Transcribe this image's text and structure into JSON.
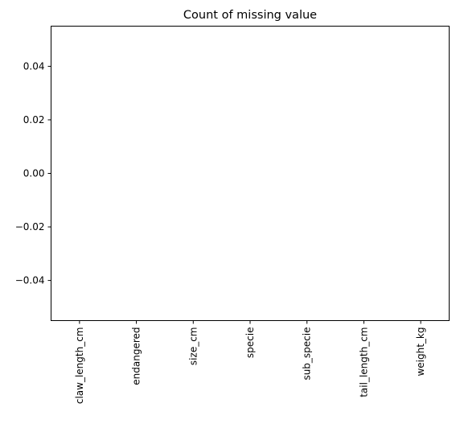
{
  "chart_data": {
    "type": "bar",
    "title": "Count of missing value",
    "xlabel": "",
    "ylabel": "",
    "categories": [
      "claw_length_cm",
      "endangered",
      "size_cm",
      "specie",
      "sub_specie",
      "tail_length_cm",
      "weight_kg"
    ],
    "values": [
      0,
      0,
      0,
      0,
      0,
      0,
      0
    ],
    "ylim": [
      -0.055,
      0.055
    ],
    "yticks": [
      0.04,
      0.02,
      0.0,
      -0.02,
      -0.04
    ],
    "ytick_labels": [
      "0.04",
      "0.02",
      "0.00",
      "−0.02",
      "−0.04"
    ],
    "grid": false,
    "legend": "none",
    "bar_color": "#1f77b4"
  }
}
